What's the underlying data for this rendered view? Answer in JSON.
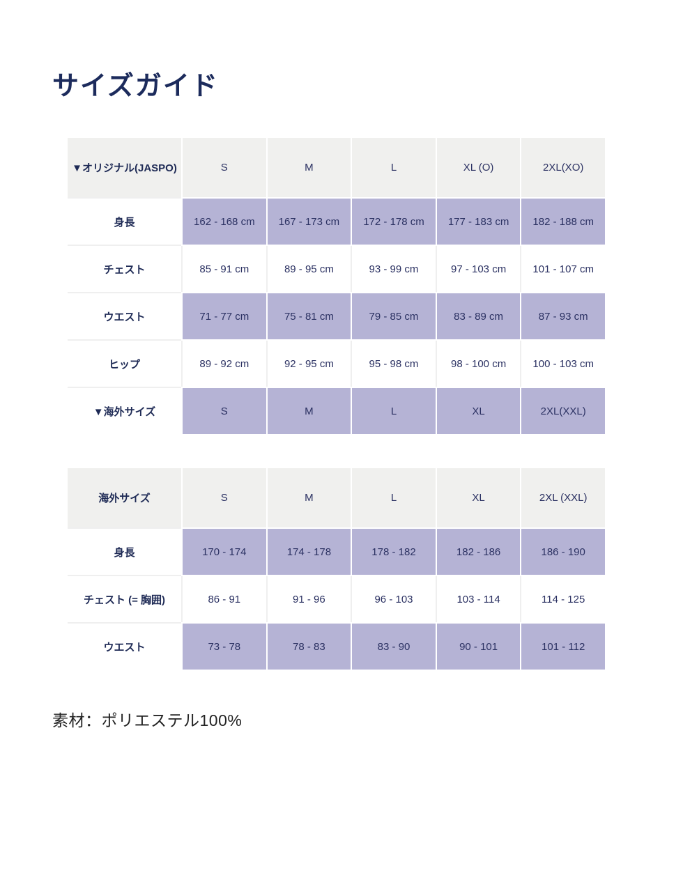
{
  "page": {
    "title": "サイズガイド",
    "material_note": "素材：ポリエステル100%"
  },
  "colors": {
    "title_navy": "#1c2b5c",
    "text_navy": "#2b3162",
    "cell_lavender": "#b5b3d5",
    "header_gray": "#f0f0ee"
  },
  "tables": [
    {
      "name": "original-jaspo",
      "header": [
        "▼オリジナル(JASPO)",
        "S",
        "M",
        "L",
        "XL (O)",
        "2XL(XO)"
      ],
      "rows": [
        {
          "label": "身長",
          "shaded": true,
          "values": [
            "162 - 168 cm",
            "167 - 173 cm",
            "172 - 178 cm",
            "177 - 183 cm",
            "182 - 188 cm"
          ]
        },
        {
          "label": "チェスト",
          "shaded": false,
          "values": [
            "85 - 91 cm",
            "89 - 95 cm",
            "93 - 99 cm",
            "97 - 103 cm",
            "101 - 107 cm"
          ]
        },
        {
          "label": "ウエスト",
          "shaded": true,
          "values": [
            "71 - 77 cm",
            "75 - 81 cm",
            "79 - 85 cm",
            "83 - 89 cm",
            "87 - 93 cm"
          ]
        },
        {
          "label": "ヒップ",
          "shaded": false,
          "values": [
            "89 - 92 cm",
            "92 - 95 cm",
            "95 - 98 cm",
            "98 - 100 cm",
            "100 - 103 cm"
          ]
        },
        {
          "label": "▼海外サイズ",
          "shaded": true,
          "values": [
            "S",
            "M",
            "L",
            "XL",
            "2XL(XXL)"
          ]
        }
      ]
    },
    {
      "name": "overseas",
      "header": [
        "海外サイズ",
        "S",
        "M",
        "L",
        "XL",
        "2XL (XXL)"
      ],
      "rows": [
        {
          "label": "身長",
          "shaded": true,
          "values": [
            "170 - 174",
            "174 - 178",
            "178 - 182",
            "182 - 186",
            "186 - 190"
          ]
        },
        {
          "label": "チェスト (= 胸囲)",
          "shaded": false,
          "values": [
            "86 - 91",
            "91 - 96",
            "96 - 103",
            "103 - 114",
            "114 - 125"
          ]
        },
        {
          "label": "ウエスト",
          "shaded": true,
          "values": [
            "73 - 78",
            "78 - 83",
            "83 - 90",
            "90 - 101",
            "101 - 112"
          ]
        }
      ]
    }
  ]
}
